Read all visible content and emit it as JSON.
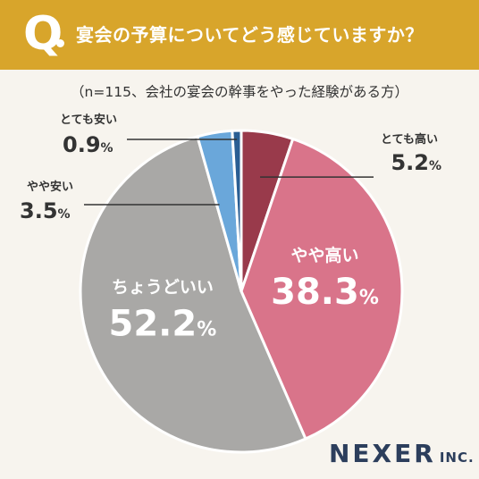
{
  "header": {
    "q_letter": "Q",
    "question": "宴会の予算についてどう感じていますか？"
  },
  "subtitle": "（n=115、会社の宴会の幹事をやった経験がある方）",
  "brand": {
    "name": "NEXER",
    "suffix": "INC."
  },
  "chart_data": {
    "type": "pie",
    "title": "宴会の予算についてどう感じていますか？",
    "subtitle": "（n=115、会社の宴会の幹事をやった経験がある方）",
    "unit": "%",
    "start_angle": "12 o'clock",
    "direction": "clockwise",
    "slices": [
      {
        "label": "とても高い",
        "value": 5.2,
        "color": "#993a4b",
        "label_placement": "outside"
      },
      {
        "label": "やや高い",
        "value": 38.3,
        "color": "#d9748a",
        "label_placement": "inside"
      },
      {
        "label": "ちょうどいい",
        "value": 52.2,
        "color": "#a9a8a6",
        "label_placement": "inside"
      },
      {
        "label": "やや安い",
        "value": 3.5,
        "color": "#6aa7da",
        "label_placement": "outside"
      },
      {
        "label": "とても安い",
        "value": 0.9,
        "color": "#2a5e93",
        "label_placement": "outside"
      }
    ]
  }
}
